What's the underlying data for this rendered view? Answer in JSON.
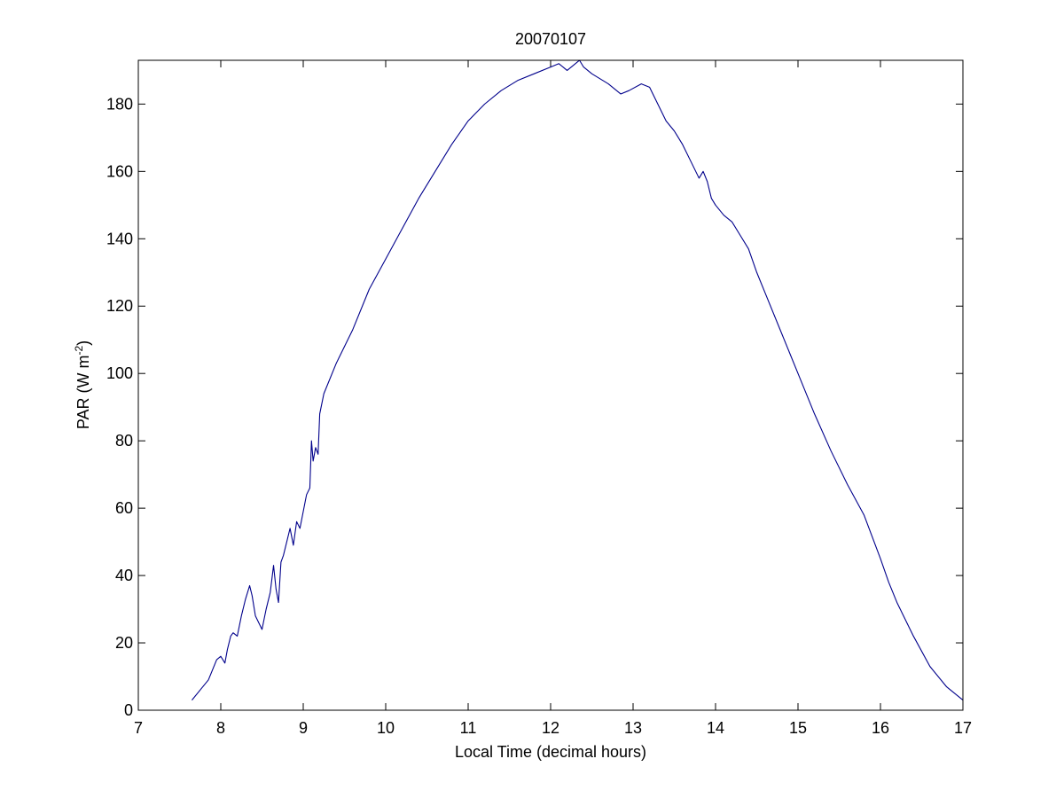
{
  "chart_data": {
    "type": "line",
    "title": "20070107",
    "xlabel": "Local Time (decimal hours)",
    "ylabel": "PAR (W m",
    "ylabel_superscript": "-2",
    "ylabel_suffix": ")",
    "xlim": [
      7,
      17
    ],
    "ylim": [
      0,
      193
    ],
    "xticks": [
      7,
      8,
      9,
      10,
      11,
      12,
      13,
      14,
      15,
      16,
      17
    ],
    "yticks": [
      0,
      20,
      40,
      60,
      80,
      100,
      120,
      140,
      160,
      180
    ],
    "grid": false,
    "legend": "none",
    "line_color": "#00008b",
    "series": [
      {
        "x": [
          7.65,
          7.75,
          7.85,
          7.9,
          7.95,
          8.0,
          8.05,
          8.08,
          8.12,
          8.15,
          8.2,
          8.25,
          8.3,
          8.35,
          8.38,
          8.42,
          8.46,
          8.5,
          8.55,
          8.6,
          8.64,
          8.67,
          8.7,
          8.73,
          8.76,
          8.8,
          8.84,
          8.88,
          8.92,
          8.96,
          9.0,
          9.04,
          9.08,
          9.1,
          9.12,
          9.15,
          9.18,
          9.2,
          9.25,
          9.4,
          9.6,
          9.8,
          10.0,
          10.2,
          10.4,
          10.6,
          10.8,
          11.0,
          11.2,
          11.4,
          11.6,
          11.8,
          12.0,
          12.1,
          12.2,
          12.3,
          12.35,
          12.4,
          12.5,
          12.7,
          12.85,
          12.95,
          13.1,
          13.2,
          13.3,
          13.4,
          13.5,
          13.6,
          13.7,
          13.8,
          13.85,
          13.9,
          13.95,
          14.0,
          14.1,
          14.2,
          14.3,
          14.4,
          14.5,
          14.6,
          14.8,
          15.0,
          15.2,
          15.4,
          15.6,
          15.8,
          16.0,
          16.1,
          16.2,
          16.4,
          16.6,
          16.8,
          17.0
        ],
        "y": [
          3,
          6,
          9,
          12,
          15,
          16,
          14,
          18,
          22,
          23,
          22,
          28,
          33,
          37,
          34,
          28,
          26,
          24,
          30,
          35,
          43,
          36,
          32,
          44,
          46,
          50,
          54,
          49,
          56,
          54,
          59,
          64,
          66,
          80,
          74,
          78,
          76,
          88,
          94,
          103,
          113,
          125,
          134,
          143,
          152,
          160,
          168,
          175,
          180,
          184,
          187,
          189,
          191,
          192,
          190,
          192,
          193,
          191,
          189,
          186,
          183,
          184,
          186,
          185,
          180,
          175,
          172,
          168,
          163,
          158,
          160,
          157,
          152,
          150,
          147,
          145,
          141,
          137,
          130,
          124,
          112,
          100,
          88,
          77,
          67,
          58,
          45,
          38,
          32,
          22,
          13,
          7,
          3
        ]
      }
    ]
  }
}
